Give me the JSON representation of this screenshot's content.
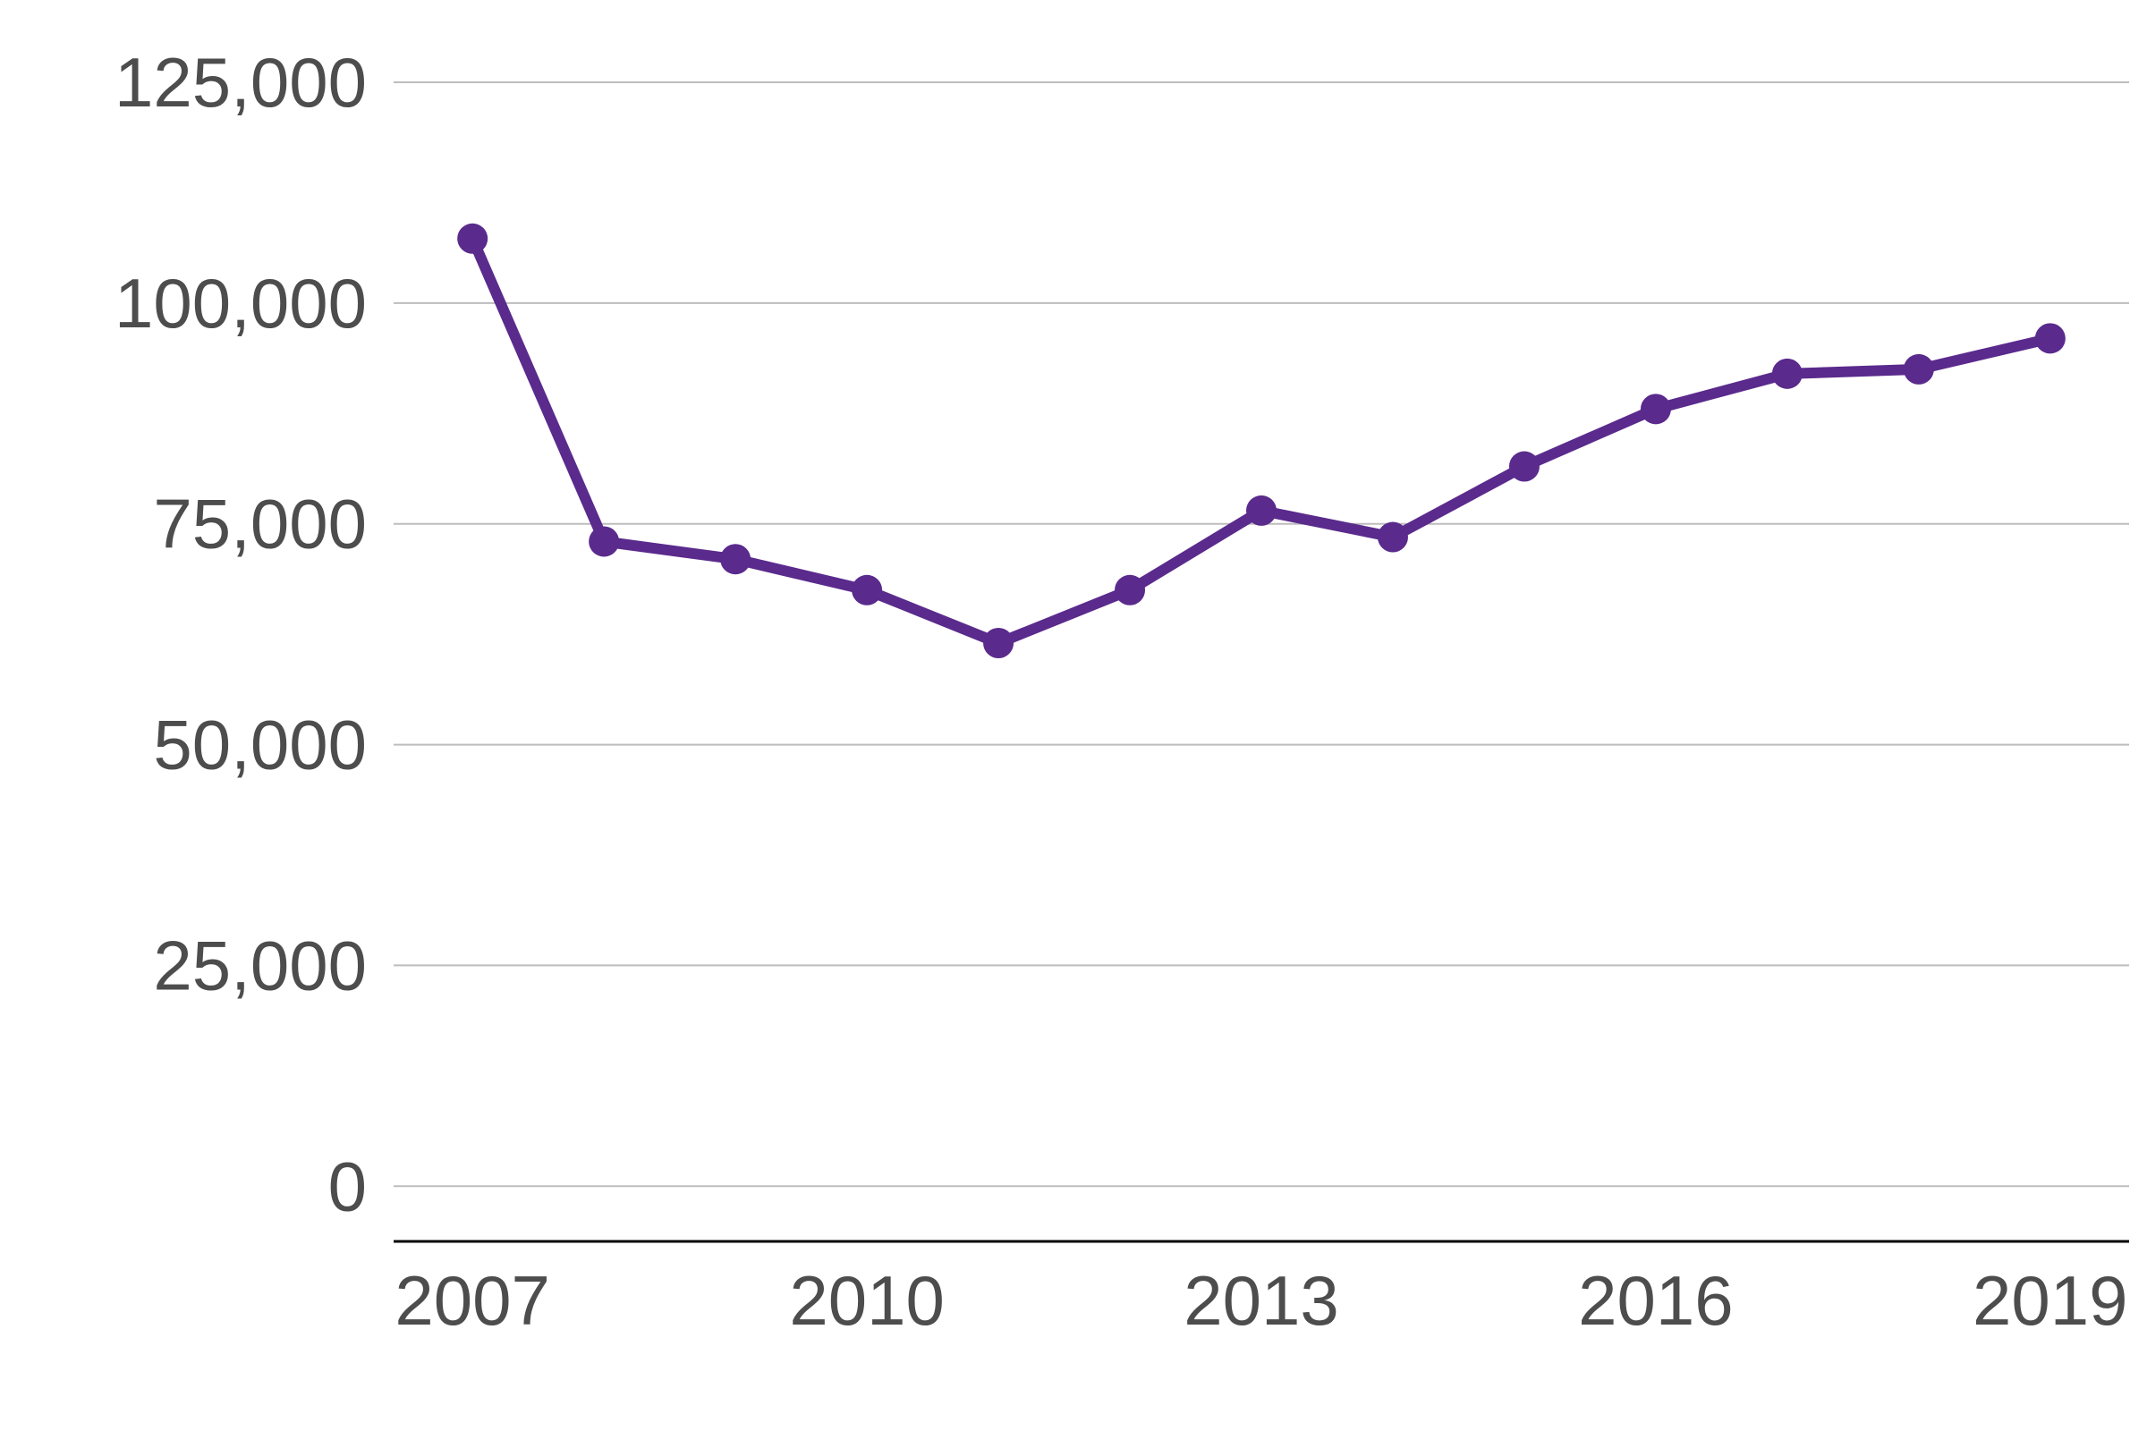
{
  "chart_data": {
    "type": "line",
    "title": "",
    "xlabel": "",
    "ylabel": "",
    "x": [
      2007,
      2008,
      2009,
      2010,
      2011,
      2012,
      2013,
      2014,
      2015,
      2016,
      2017,
      2018,
      2019
    ],
    "series": [
      {
        "values": [
          107300,
          73000,
          71000,
          67500,
          61500,
          67500,
          76500,
          73500,
          81500,
          88000,
          92000,
          92500,
          96000
        ]
      }
    ],
    "ylim": [
      -6250,
      125000
    ],
    "y_ticks": [
      0,
      25000,
      50000,
      75000,
      100000,
      125000
    ],
    "y_tick_labels": [
      "0",
      "25,000",
      "50,000",
      "75,000",
      "100,000",
      "125,000"
    ],
    "x_ticks": [
      2007,
      2010,
      2013,
      2016,
      2019
    ],
    "x_tick_labels": [
      "2007",
      "2010",
      "2013",
      "2016",
      "2019"
    ],
    "grid": true,
    "legend": "none",
    "colors": {
      "line": "#5a2a8c",
      "grid": "#bdbdbd",
      "axis": "#000000",
      "text": "#4d4d4d"
    }
  }
}
